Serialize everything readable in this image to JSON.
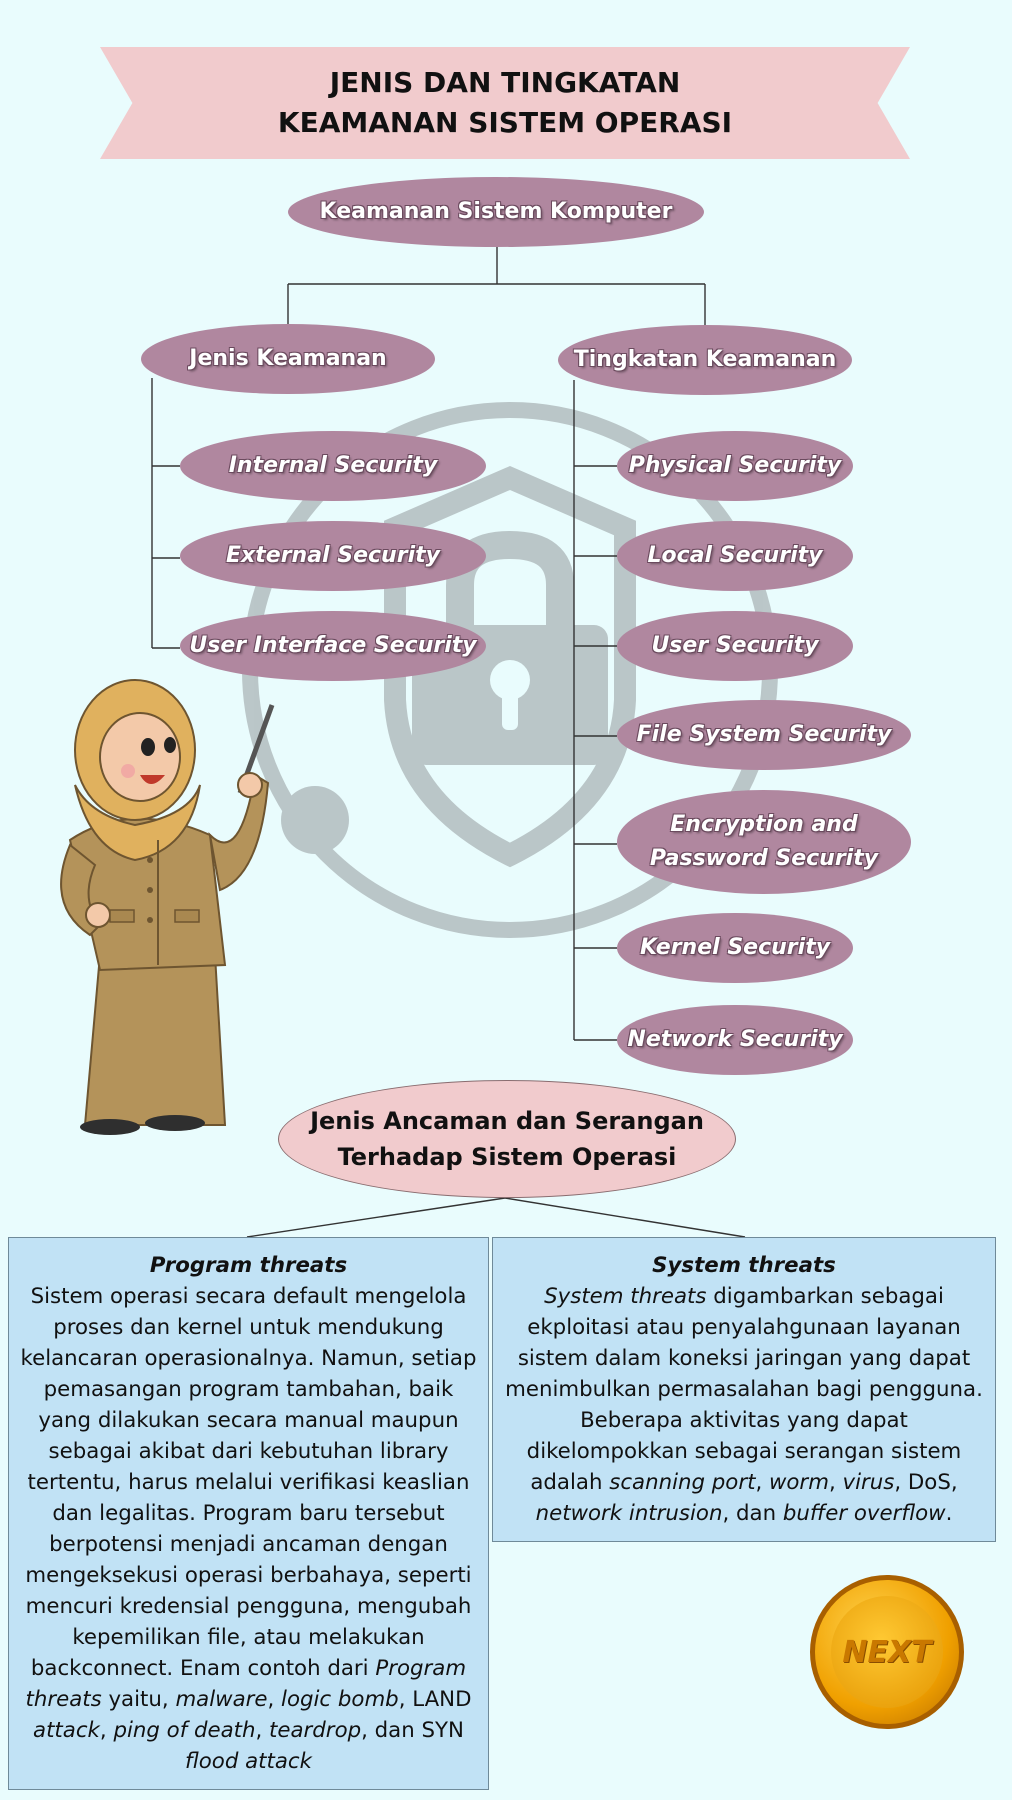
{
  "header": {
    "line1": "JENIS DAN TINGKATAN",
    "line2": "KEAMANAN SISTEM OPERASI"
  },
  "root": "Keamanan Sistem Komputer",
  "jenis": {
    "label": "Jenis Keamanan",
    "items": [
      "Internal Security",
      "External Security",
      "User Interface Security"
    ]
  },
  "tingkatan": {
    "label": "Tingkatan Keamanan",
    "items": [
      "Physical Security",
      "Local Security",
      "User Security",
      "File System Security",
      "Encryption and",
      "Password Security",
      "Kernel Security",
      "Network Security"
    ]
  },
  "threats": {
    "title_line1": "Jenis Ancaman dan Serangan",
    "title_line2": "Terhadap Sistem Operasi",
    "program": {
      "title": "Program threats",
      "text": "Sistem operasi secara default mengelola proses dan kernel untuk mendukung kelancaran operasionalnya. Namun, setiap pemasangan program tambahan, baik yang dilakukan secara manual maupun sebagai akibat dari kebutuhan library tertentu, harus melalui verifikasi keaslian dan legalitas. Program baru tersebut berpotensi menjadi ancaman dengan mengeksekusi operasi berbahaya, seperti mencuri kredensial pengguna, mengubah kepemilikan file, atau melakukan backconnect. Enam contoh dari",
      "t1": "Program threats",
      "t2": " yaitu,",
      "t3": "malware",
      "t4": ", ",
      "t5": "logic bomb",
      "t6": ", LAND ",
      "t7": "attack",
      "t8": ", ",
      "t9": "ping of death",
      "t10": ", ",
      "t11": "teardrop",
      "t12": ", dan SYN ",
      "t13": "flood attack"
    },
    "system": {
      "title": "System threats",
      "s1": "System threats",
      "s2": " digambarkan sebagai ekploitasi atau penyalahgunaan layanan sistem dalam koneksi jaringan yang dapat menimbulkan permasalahan bagi pengguna. Beberapa aktivitas yang dapat dikelompokkan sebagai serangan sistem adalah ",
      "s3": "scanning port",
      "s4": ", ",
      "s5": "worm",
      "s6": ", ",
      "s7": "virus",
      "s8": ", DoS, ",
      "s9": "network intrusion",
      "s10": ", dan ",
      "s11": "buffer overflow",
      "s12": "."
    }
  },
  "next_button": "NEXT",
  "icons": {
    "watermark": "shield-lock-icon",
    "character": "teacher-character"
  },
  "colors": {
    "background": "#e9fcfd",
    "pill": "#b0879f",
    "banner": "#f1cbcd",
    "box": "#c1e2f5",
    "button": "#f0a000"
  }
}
